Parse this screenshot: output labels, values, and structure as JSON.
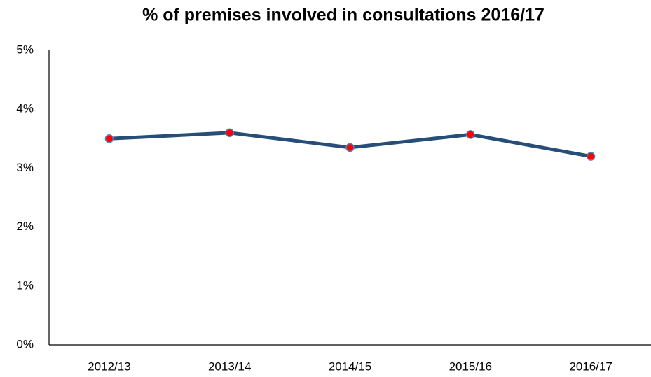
{
  "chart_data": {
    "type": "line",
    "title": "% of premises involved in consultations 2016/17",
    "categories": [
      "2012/13",
      "2013/14",
      "2014/15",
      "2015/16",
      "2016/17"
    ],
    "series": [
      {
        "name": "% of premises",
        "color": "#264e78",
        "marker_color": "#ff0000",
        "values": [
          3.5,
          3.6,
          3.35,
          3.57,
          3.2
        ]
      }
    ],
    "ylim": [
      0,
      5
    ],
    "yticks": [
      {
        "value": 0,
        "label": "0%"
      },
      {
        "value": 1,
        "label": "1%"
      },
      {
        "value": 2,
        "label": "2%"
      },
      {
        "value": 3,
        "label": "3%"
      },
      {
        "value": 4,
        "label": "4%"
      },
      {
        "value": 5,
        "label": "5%"
      }
    ],
    "grid": false,
    "legend": false
  }
}
